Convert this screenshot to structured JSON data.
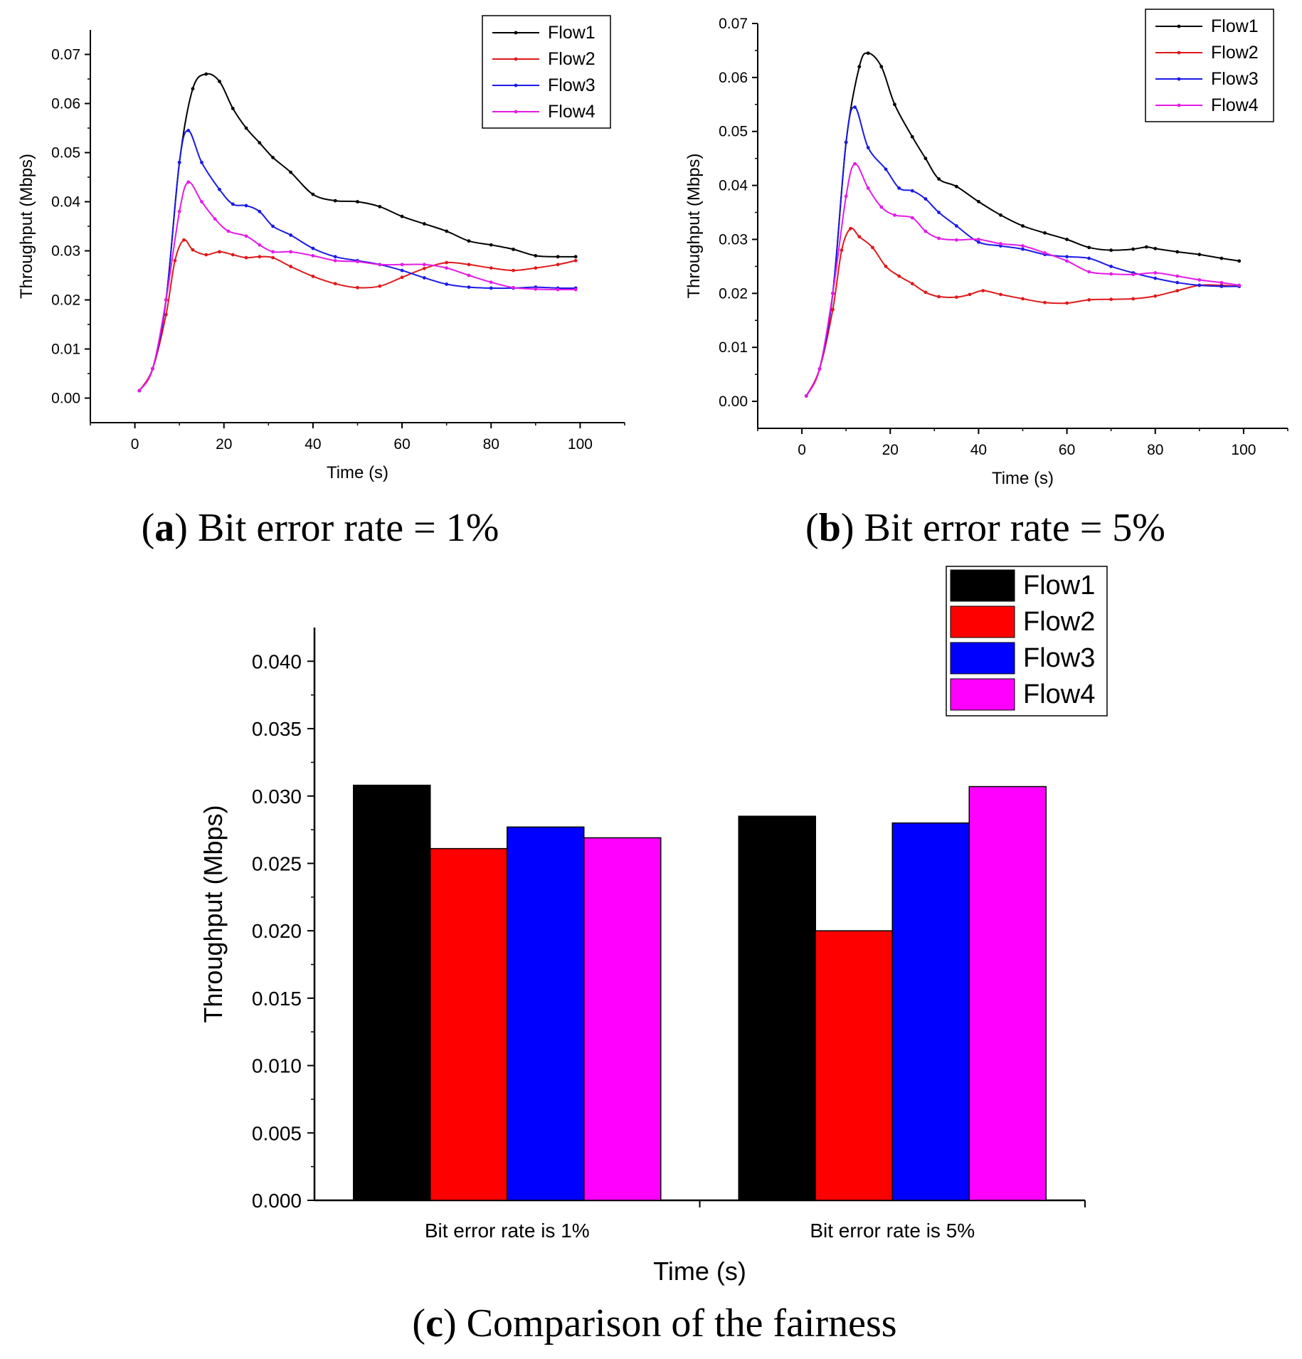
{
  "colors": {
    "flow1": "#000000",
    "flow2": "#e0191b",
    "flow3": "#1a1ae6",
    "flow4": "#e61ae6",
    "bar_flow1": "#000000",
    "bar_flow2": "#ff0000",
    "bar_flow3": "#0000ff",
    "bar_flow4": "#ff00ff"
  },
  "captions": {
    "a": {
      "letter": "a",
      "text": " Bit error rate = 1%"
    },
    "b": {
      "letter": "b",
      "text": " Bit error rate = 5%"
    },
    "c": {
      "letter": "c",
      "text": " Comparison of the fairness"
    }
  },
  "chart_data": [
    {
      "id": "a",
      "type": "line",
      "title": "",
      "xlabel": "Time (s)",
      "ylabel": "Throughput (Mbps)",
      "xlim": [
        -10,
        110
      ],
      "ylim": [
        -0.005,
        0.075
      ],
      "xticks": [
        0,
        20,
        40,
        60,
        80,
        100
      ],
      "yticks": [
        0.0,
        0.01,
        0.02,
        0.03,
        0.04,
        0.05,
        0.06,
        0.07
      ],
      "xtick_labels": [
        "0",
        "20",
        "40",
        "60",
        "80",
        "100"
      ],
      "ytick_labels": [
        "0.00",
        "0.01",
        "0.02",
        "0.03",
        "0.04",
        "0.05",
        "0.06",
        "0.07"
      ],
      "legend": [
        "Flow1",
        "Flow2",
        "Flow3",
        "Flow4"
      ],
      "legend_position": "top-right",
      "series": [
        {
          "name": "Flow1",
          "x": [
            1,
            4,
            7,
            10,
            13,
            16,
            19,
            22,
            25,
            28,
            31,
            35,
            40,
            45,
            50,
            55,
            60,
            65,
            70,
            75,
            80,
            85,
            90,
            95,
            99
          ],
          "y": [
            0.0015,
            0.006,
            0.02,
            0.048,
            0.063,
            0.066,
            0.0645,
            0.059,
            0.055,
            0.052,
            0.049,
            0.046,
            0.0415,
            0.0402,
            0.04,
            0.039,
            0.037,
            0.0355,
            0.034,
            0.032,
            0.0312,
            0.0303,
            0.029,
            0.0288,
            0.0288
          ]
        },
        {
          "name": "Flow2",
          "x": [
            1,
            4,
            7,
            9,
            11,
            13,
            16,
            19,
            22,
            25,
            28,
            31,
            35,
            40,
            45,
            50,
            55,
            60,
            65,
            70,
            75,
            80,
            85,
            90,
            95,
            99
          ],
          "y": [
            0.0015,
            0.006,
            0.017,
            0.028,
            0.0322,
            0.0302,
            0.0292,
            0.0298,
            0.0292,
            0.0286,
            0.0288,
            0.0286,
            0.0268,
            0.0248,
            0.0233,
            0.0225,
            0.0228,
            0.0246,
            0.0264,
            0.0276,
            0.0272,
            0.0265,
            0.026,
            0.0265,
            0.0272,
            0.028
          ]
        },
        {
          "name": "Flow3",
          "x": [
            1,
            4,
            7,
            10,
            12,
            15,
            19,
            22,
            25,
            28,
            31,
            35,
            40,
            45,
            50,
            55,
            60,
            65,
            70,
            75,
            80,
            85,
            90,
            95,
            99
          ],
          "y": [
            0.0015,
            0.006,
            0.02,
            0.048,
            0.0545,
            0.048,
            0.0425,
            0.0395,
            0.0392,
            0.038,
            0.035,
            0.0332,
            0.0305,
            0.0288,
            0.028,
            0.0272,
            0.026,
            0.0245,
            0.0232,
            0.0226,
            0.0224,
            0.0224,
            0.0226,
            0.0224,
            0.0224
          ]
        },
        {
          "name": "Flow4",
          "x": [
            1,
            4,
            7,
            10,
            12,
            15,
            18,
            21,
            25,
            28,
            31,
            35,
            40,
            45,
            50,
            55,
            60,
            65,
            70,
            75,
            80,
            85,
            90,
            95,
            99
          ],
          "y": [
            0.0015,
            0.006,
            0.02,
            0.038,
            0.044,
            0.04,
            0.0365,
            0.034,
            0.033,
            0.0312,
            0.0298,
            0.0298,
            0.029,
            0.028,
            0.0278,
            0.0272,
            0.0272,
            0.0272,
            0.0265,
            0.025,
            0.0236,
            0.0225,
            0.0222,
            0.0221,
            0.0221
          ]
        }
      ]
    },
    {
      "id": "b",
      "type": "line",
      "title": "",
      "xlabel": "Time (s)",
      "ylabel": "Throughput (Mbps)",
      "xlim": [
        -10,
        110
      ],
      "ylim": [
        -0.005,
        0.07
      ],
      "xticks": [
        0,
        20,
        40,
        60,
        80,
        100
      ],
      "yticks": [
        0.0,
        0.01,
        0.02,
        0.03,
        0.04,
        0.05,
        0.06,
        0.07
      ],
      "xtick_labels": [
        "0",
        "20",
        "40",
        "60",
        "80",
        "100"
      ],
      "ytick_labels": [
        "0.00",
        "0.01",
        "0.02",
        "0.03",
        "0.04",
        "0.05",
        "0.06",
        "0.07"
      ],
      "legend": [
        "Flow1",
        "Flow2",
        "Flow3",
        "Flow4"
      ],
      "legend_position": "top-right",
      "series": [
        {
          "name": "Flow1",
          "x": [
            1,
            4,
            7,
            10,
            13,
            15,
            18,
            21,
            25,
            28,
            31,
            35,
            40,
            45,
            50,
            55,
            60,
            65,
            70,
            75,
            78,
            80,
            85,
            90,
            95,
            99
          ],
          "y": [
            0.001,
            0.006,
            0.02,
            0.048,
            0.062,
            0.0645,
            0.062,
            0.055,
            0.049,
            0.045,
            0.0412,
            0.0398,
            0.037,
            0.0345,
            0.0325,
            0.0312,
            0.03,
            0.0285,
            0.028,
            0.0282,
            0.0286,
            0.0283,
            0.0277,
            0.0272,
            0.0265,
            0.026
          ]
        },
        {
          "name": "Flow2",
          "x": [
            1,
            4,
            7,
            9,
            11,
            13,
            16,
            19,
            22,
            25,
            28,
            31,
            35,
            38,
            41,
            45,
            50,
            55,
            60,
            65,
            70,
            75,
            80,
            85,
            90,
            95,
            99
          ],
          "y": [
            0.001,
            0.006,
            0.017,
            0.028,
            0.032,
            0.0305,
            0.0285,
            0.025,
            0.0232,
            0.0218,
            0.0202,
            0.0194,
            0.0193,
            0.0198,
            0.0205,
            0.0198,
            0.019,
            0.0183,
            0.0182,
            0.0188,
            0.0189,
            0.019,
            0.0195,
            0.0205,
            0.0215,
            0.0215,
            0.0213
          ]
        },
        {
          "name": "Flow3",
          "x": [
            1,
            4,
            7,
            10,
            12,
            15,
            19,
            22,
            25,
            28,
            31,
            35,
            40,
            45,
            50,
            55,
            60,
            65,
            70,
            75,
            80,
            85,
            90,
            95,
            99
          ],
          "y": [
            0.001,
            0.006,
            0.02,
            0.048,
            0.0545,
            0.047,
            0.043,
            0.0395,
            0.039,
            0.0375,
            0.035,
            0.0325,
            0.0295,
            0.0288,
            0.0282,
            0.0272,
            0.0268,
            0.0265,
            0.025,
            0.0238,
            0.0228,
            0.022,
            0.0215,
            0.0213,
            0.0213
          ]
        },
        {
          "name": "Flow4",
          "x": [
            1,
            4,
            7,
            10,
            12,
            15,
            18,
            21,
            25,
            28,
            31,
            35,
            40,
            45,
            50,
            55,
            60,
            65,
            70,
            75,
            80,
            85,
            90,
            95,
            99
          ],
          "y": [
            0.001,
            0.006,
            0.02,
            0.038,
            0.044,
            0.0395,
            0.036,
            0.0345,
            0.034,
            0.0315,
            0.0302,
            0.0299,
            0.03,
            0.0292,
            0.0288,
            0.0275,
            0.026,
            0.024,
            0.0236,
            0.0235,
            0.0238,
            0.0232,
            0.0225,
            0.022,
            0.0215
          ]
        }
      ]
    },
    {
      "id": "c",
      "type": "bar",
      "title": "",
      "xlabel": "Time (s)",
      "ylabel": "Throughput (Mbps)",
      "ylim": [
        0,
        0.0425
      ],
      "yticks": [
        0.0,
        0.005,
        0.01,
        0.015,
        0.02,
        0.025,
        0.03,
        0.035,
        0.04
      ],
      "ytick_labels": [
        "0.000",
        "0.005",
        "0.010",
        "0.015",
        "0.020",
        "0.025",
        "0.030",
        "0.035",
        "0.040"
      ],
      "categories": [
        "Bit error rate is 1%",
        "Bit error rate is 5%"
      ],
      "legend": [
        "Flow1",
        "Flow2",
        "Flow3",
        "Flow4"
      ],
      "legend_position": "top-right",
      "series": [
        {
          "name": "Flow1",
          "values": [
            0.0308,
            0.0285
          ]
        },
        {
          "name": "Flow2",
          "values": [
            0.0261,
            0.02
          ]
        },
        {
          "name": "Flow3",
          "values": [
            0.0277,
            0.028
          ]
        },
        {
          "name": "Flow4",
          "values": [
            0.0269,
            0.0307
          ]
        }
      ]
    }
  ]
}
